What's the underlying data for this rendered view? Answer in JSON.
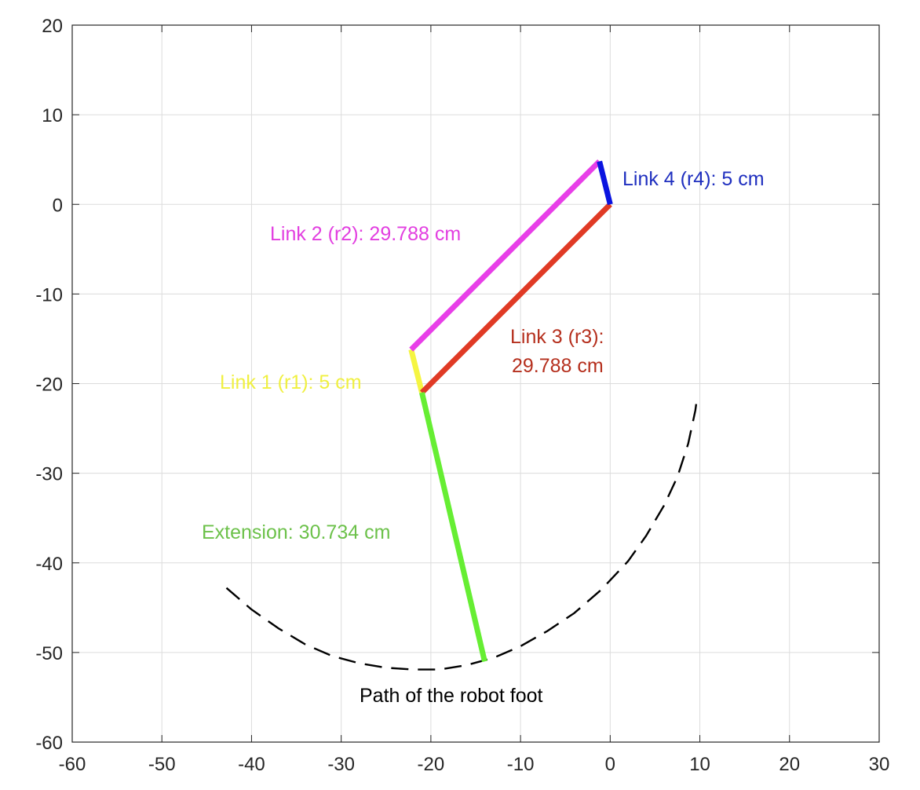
{
  "chart_data": {
    "type": "line",
    "title": "",
    "xlabel": "",
    "ylabel": "",
    "xlim": [
      -60,
      30
    ],
    "ylim": [
      -60,
      20
    ],
    "grid": true,
    "x_ticks": [
      -60,
      -50,
      -40,
      -30,
      -20,
      -10,
      0,
      10,
      20,
      30
    ],
    "y_ticks": [
      20,
      10,
      0,
      -10,
      -20,
      -30,
      -40,
      -50,
      -60
    ],
    "x_tick_labels": [
      "-60",
      "-50",
      "-40",
      "-30",
      "-20",
      "-10",
      "0",
      "10",
      "20",
      "30"
    ],
    "y_tick_labels": [
      "20",
      "10",
      "0",
      "-10",
      "-20",
      "-30",
      "-40",
      "-50",
      "-60"
    ],
    "links": [
      {
        "key": "r1",
        "color": "#f5f542",
        "points": [
          [
            -22.2,
            -16.2
          ],
          [
            -21.0,
            -21.0
          ]
        ]
      },
      {
        "key": "r2",
        "color": "#e83ee8",
        "points": [
          [
            -22.2,
            -16.2
          ],
          [
            -1.2,
            4.8
          ]
        ]
      },
      {
        "key": "r3",
        "color": "#e03a25",
        "points": [
          [
            -21.0,
            -21.0
          ],
          [
            0.0,
            0.0
          ]
        ]
      },
      {
        "key": "r4",
        "color": "#0a14e0",
        "points": [
          [
            -1.2,
            4.8
          ],
          [
            0.0,
            0.0
          ]
        ]
      },
      {
        "key": "extension",
        "color": "#66ee33",
        "points": [
          [
            -21.0,
            -21.0
          ],
          [
            -14.0,
            -51.0
          ]
        ]
      }
    ],
    "foot_path": {
      "color": "#000000",
      "points": [
        [
          -42.8,
          -42.8
        ],
        [
          -40,
          -45.2
        ],
        [
          -37,
          -47.3
        ],
        [
          -34,
          -49.1
        ],
        [
          -31,
          -50.4
        ],
        [
          -28,
          -51.2
        ],
        [
          -25,
          -51.7
        ],
        [
          -22,
          -51.9
        ],
        [
          -19,
          -51.9
        ],
        [
          -16,
          -51.4
        ],
        [
          -13,
          -50.6
        ],
        [
          -10,
          -49.3
        ],
        [
          -7,
          -47.6
        ],
        [
          -4,
          -45.6
        ],
        [
          -1,
          -43
        ],
        [
          2,
          -39.8
        ],
        [
          4,
          -37
        ],
        [
          6,
          -33.6
        ],
        [
          7.5,
          -30.4
        ],
        [
          8.7,
          -26.7
        ],
        [
          9.5,
          -23
        ],
        [
          9.7,
          -21.5
        ]
      ]
    },
    "annotations": [
      {
        "key": "r4",
        "text": "Link 4 (r4): 5 cm",
        "color": "#1f2fbf"
      },
      {
        "key": "r2",
        "text": "Link 2 (r2): 29.788 cm",
        "color": "#e23ee0"
      },
      {
        "key": "r3a",
        "text": "Link 3 (r3):",
        "color": "#b52f1d"
      },
      {
        "key": "r3b",
        "text": "29.788 cm",
        "color": "#b52f1d"
      },
      {
        "key": "r1",
        "text": "Link 1 (r1): 5 cm",
        "color": "#f0f040"
      },
      {
        "key": "ext",
        "text": "Extension: 30.734 cm",
        "color": "#6cc14a"
      },
      {
        "key": "path",
        "text": "Path of the robot foot",
        "color": "#000000"
      }
    ]
  }
}
